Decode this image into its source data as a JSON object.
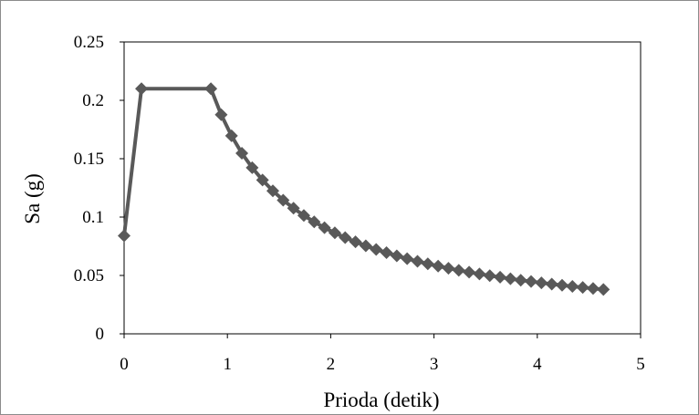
{
  "chart_data": {
    "type": "line",
    "title": "",
    "xlabel": "Prioda (detik)",
    "ylabel": "Sa (g)",
    "xlim": [
      0,
      5
    ],
    "ylim": [
      0,
      0.25
    ],
    "x_ticks": [
      "0",
      "1",
      "2",
      "3",
      "4",
      "5"
    ],
    "y_ticks": [
      "0",
      "0.05",
      "0.1",
      "0.15",
      "0.2",
      "0.25"
    ],
    "grid": false,
    "legend": "none",
    "series_color": "#595959",
    "series": [
      {
        "marker": "diamond",
        "x": [
          0,
          0.168,
          0.84,
          0.94,
          1.04,
          1.14,
          1.24,
          1.34,
          1.44,
          1.54,
          1.64,
          1.74,
          1.84,
          1.94,
          2.04,
          2.14,
          2.24,
          2.34,
          2.44,
          2.54,
          2.64,
          2.74,
          2.84,
          2.94,
          3.04,
          3.14,
          3.24,
          3.34,
          3.44,
          3.54,
          3.64,
          3.74,
          3.84,
          3.94,
          4.04,
          4.14,
          4.24,
          4.34,
          4.44,
          4.54,
          4.64
        ],
        "y": [
          0.084,
          0.21,
          0.21,
          0.1877,
          0.1696,
          0.1547,
          0.1423,
          0.1317,
          0.1225,
          0.1145,
          0.1076,
          0.1014,
          0.0959,
          0.0909,
          0.0865,
          0.0824,
          0.0788,
          0.0754,
          0.0723,
          0.0695,
          0.0668,
          0.0644,
          0.0621,
          0.06,
          0.058,
          0.0562,
          0.0544,
          0.0528,
          0.0513,
          0.0498,
          0.0485,
          0.0472,
          0.0459,
          0.0448,
          0.0437,
          0.0426,
          0.0416,
          0.0406,
          0.0397,
          0.0389,
          0.038
        ]
      }
    ]
  }
}
